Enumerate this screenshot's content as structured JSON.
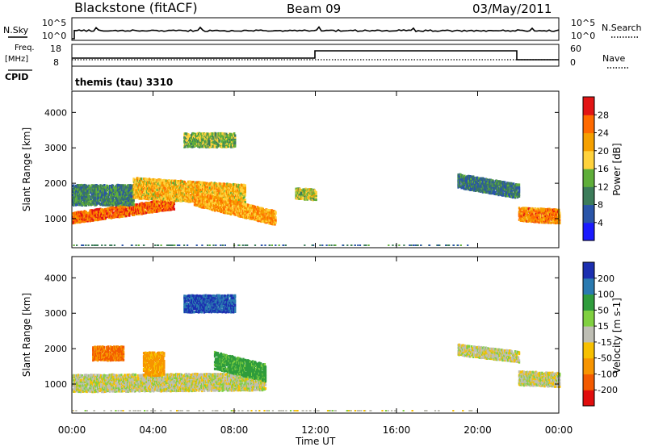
{
  "header": {
    "title": "Blackstone (fitACF)",
    "beam": "Beam 09",
    "date": "03/May/2011"
  },
  "top_strip": {
    "left_label": "N.Sky",
    "left_tick_top": "10^5",
    "left_tick_bottom": "10^0",
    "right_tick_top": "10^5",
    "right_tick_bottom": "10^0",
    "right_label": "N.Search"
  },
  "freq_strip": {
    "left_label_line1": "Freq.",
    "left_label_line2": "[MHz]",
    "left_tick_top": "18",
    "left_tick_bottom": "8",
    "right_tick_top": "60",
    "right_tick_bottom": "0",
    "right_label": "Nave",
    "cpid_label": "CPID",
    "cpid_text": "themis (tau) 3310"
  },
  "colors": {
    "power_scale": [
      "#1a1aff",
      "#2a55a8",
      "#3c7c5a",
      "#5fae3a",
      "#ffd23c",
      "#f5a000",
      "#ff6a00",
      "#e21515"
    ],
    "velocity_scale": [
      "#e10d0d",
      "#f35a00",
      "#f79400",
      "#f7c000",
      "#bebeb4",
      "#80d040",
      "#2f9c3c",
      "#2a7ab0",
      "#1c2fb0"
    ]
  },
  "chart_data": [
    {
      "type": "heatmap",
      "panel": "power",
      "ylabel": "Slant Range [km]",
      "colorbar_label": "Power [dB]",
      "colorbar_ticks": [
        "4",
        "8",
        "12",
        "16",
        "20",
        "24",
        "28"
      ],
      "ylim": [
        180,
        4600
      ],
      "yticks": [
        1000,
        2000,
        3000,
        4000
      ],
      "xticks": [
        "00:00",
        "04:00",
        "08:00",
        "12:00",
        "16:00",
        "20:00",
        "00:00"
      ],
      "features": [
        {
          "hour_start": 0.0,
          "hour_end": 5.0,
          "range_center_start": 1050,
          "range_center_end": 1450,
          "halfwidth": 140,
          "power_db": 26
        },
        {
          "hour_start": 0.0,
          "hour_end": 3.0,
          "range_center_start": 1700,
          "range_center_end": 1700,
          "halfwidth": 250,
          "power_db": 10
        },
        {
          "hour_start": 3.0,
          "hour_end": 8.5,
          "range_center_start": 1900,
          "range_center_end": 1700,
          "halfwidth": 250,
          "power_db": 20
        },
        {
          "hour_start": 6.0,
          "hour_end": 10.0,
          "range_center_start": 1600,
          "range_center_end": 1050,
          "halfwidth": 180,
          "power_db": 22
        },
        {
          "hour_start": 5.5,
          "hour_end": 8.0,
          "range_center_start": 3250,
          "range_center_end": 3250,
          "halfwidth": 200,
          "power_db": 14
        },
        {
          "hour_start": 11.0,
          "hour_end": 12.0,
          "range_center_start": 1750,
          "range_center_end": 1700,
          "halfwidth": 150,
          "power_db": 16
        },
        {
          "hour_start": 19.0,
          "hour_end": 22.0,
          "range_center_start": 2100,
          "range_center_end": 1800,
          "halfwidth": 180,
          "power_db": 9
        },
        {
          "hour_start": 22.0,
          "hour_end": 24.0,
          "range_center_start": 1150,
          "range_center_end": 1100,
          "halfwidth": 200,
          "power_db": 24
        }
      ]
    },
    {
      "type": "heatmap",
      "panel": "velocity",
      "ylabel": "Slant Range [km]",
      "colorbar_label": "Velocity [m s-1]",
      "colorbar_ticks": [
        "-200",
        "-100",
        "-50",
        "-15",
        "15",
        "50",
        "100",
        "200"
      ],
      "ylim": [
        180,
        4600
      ],
      "yticks": [
        1000,
        2000,
        3000,
        4000
      ],
      "xticks": [
        "00:00",
        "04:00",
        "08:00",
        "12:00",
        "16:00",
        "20:00",
        "00:00"
      ],
      "xlabel": "Time UT",
      "features": [
        {
          "hour_start": 0.0,
          "hour_end": 9.5,
          "range_center_start": 1050,
          "range_center_end": 1100,
          "halfwidth": 220,
          "velocity": 0
        },
        {
          "hour_start": 1.0,
          "hour_end": 2.5,
          "range_center_start": 1900,
          "range_center_end": 1900,
          "halfwidth": 200,
          "velocity": -100
        },
        {
          "hour_start": 3.5,
          "hour_end": 4.5,
          "range_center_start": 1600,
          "range_center_end": 1600,
          "halfwidth": 300,
          "velocity": -60
        },
        {
          "hour_start": 7.0,
          "hour_end": 9.5,
          "range_center_start": 1700,
          "range_center_end": 1350,
          "halfwidth": 220,
          "velocity": 70
        },
        {
          "hour_start": 5.5,
          "hour_end": 8.0,
          "range_center_start": 3300,
          "range_center_end": 3300,
          "halfwidth": 220,
          "velocity": 200
        },
        {
          "hour_start": 19.0,
          "hour_end": 22.0,
          "range_center_start": 2000,
          "range_center_end": 1800,
          "halfwidth": 120,
          "velocity": 0
        },
        {
          "hour_start": 22.0,
          "hour_end": 24.0,
          "range_center_start": 1200,
          "range_center_end": 1150,
          "halfwidth": 200,
          "velocity": 0
        }
      ]
    }
  ]
}
